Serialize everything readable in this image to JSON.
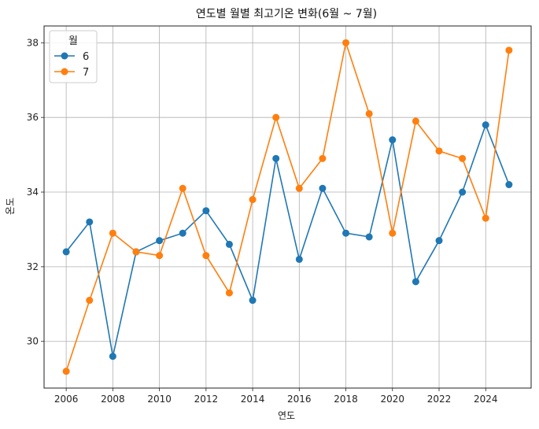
{
  "chart_data": {
    "type": "line",
    "title": "연도별 월별 최고기온 변화(6월 ~ 7월)",
    "xlabel": "연도",
    "ylabel": "온도",
    "x": [
      2006,
      2007,
      2008,
      2009,
      2010,
      2011,
      2012,
      2013,
      2014,
      2015,
      2016,
      2017,
      2018,
      2019,
      2020,
      2021,
      2022,
      2023,
      2024,
      2025
    ],
    "xlim": [
      2005.05,
      2025.95
    ],
    "ylim": [
      28.75,
      38.45
    ],
    "xticks": [
      2006,
      2008,
      2010,
      2012,
      2014,
      2016,
      2018,
      2020,
      2022,
      2024
    ],
    "yticks": [
      30,
      32,
      34,
      36,
      38
    ],
    "grid": true,
    "legend": {
      "title": "월",
      "placement": "top-left"
    },
    "series": [
      {
        "name": "6",
        "color": "#1f77b4",
        "values": [
          32.4,
          33.2,
          29.6,
          32.4,
          32.7,
          32.9,
          33.5,
          32.6,
          31.1,
          34.9,
          32.2,
          34.1,
          32.9,
          32.8,
          35.4,
          31.6,
          32.7,
          34.0,
          35.8,
          34.2
        ]
      },
      {
        "name": "7",
        "color": "#ff7f0e",
        "values": [
          29.2,
          31.1,
          32.9,
          32.4,
          32.3,
          34.1,
          32.3,
          31.3,
          33.8,
          36.0,
          34.1,
          34.9,
          38.0,
          36.1,
          32.9,
          35.9,
          35.1,
          34.9,
          33.3,
          37.8
        ]
      }
    ]
  }
}
